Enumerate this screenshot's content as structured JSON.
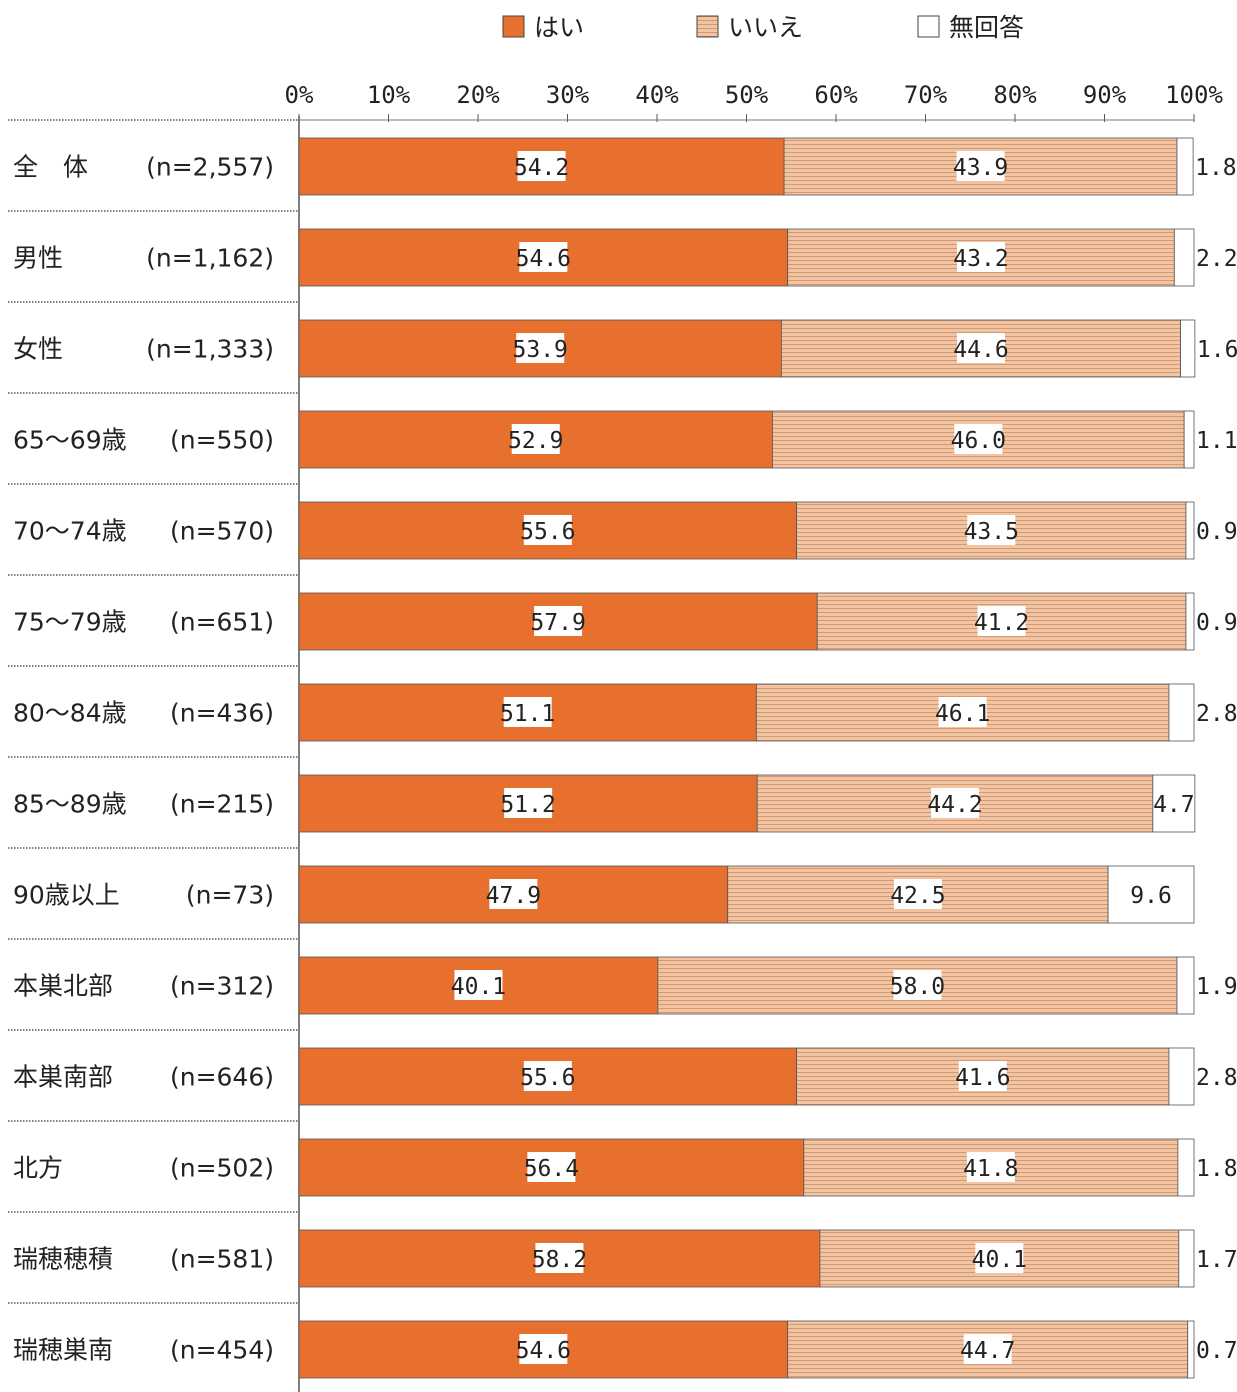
{
  "chart_data": {
    "type": "bar",
    "orientation": "horizontal",
    "stacked": true,
    "xlim": [
      0,
      100
    ],
    "x_ticks": [
      "0%",
      "10%",
      "20%",
      "30%",
      "40%",
      "50%",
      "60%",
      "70%",
      "80%",
      "90%",
      "100%"
    ],
    "legend_position": "top",
    "categories": [
      {
        "label": "全　体",
        "n": "(n=2,557)"
      },
      {
        "label": "男性",
        "n": "(n=1,162)"
      },
      {
        "label": "女性",
        "n": "(n=1,333)"
      },
      {
        "label": "65～69歳",
        "n": "(n=550)"
      },
      {
        "label": "70～74歳",
        "n": "(n=570)"
      },
      {
        "label": "75～79歳",
        "n": "(n=651)"
      },
      {
        "label": "80～84歳",
        "n": "(n=436)"
      },
      {
        "label": "85～89歳",
        "n": "(n=215)"
      },
      {
        "label": "90歳以上",
        "n": "(n=73)"
      },
      {
        "label": "本巣北部",
        "n": "(n=312)"
      },
      {
        "label": "本巣南部",
        "n": "(n=646)"
      },
      {
        "label": "北方",
        "n": "(n=502)"
      },
      {
        "label": "瑞穂穂積",
        "n": "(n=581)"
      },
      {
        "label": "瑞穂巣南",
        "n": "(n=454)"
      }
    ],
    "series": [
      {
        "name": "はい",
        "color": "#E8702F",
        "values": [
          54.2,
          54.6,
          53.9,
          52.9,
          55.6,
          57.9,
          51.1,
          51.2,
          47.9,
          40.1,
          55.6,
          56.4,
          58.2,
          54.6
        ]
      },
      {
        "name": "いいえ",
        "color": "#F2C4A2",
        "values": [
          43.9,
          43.2,
          44.6,
          46.0,
          43.5,
          41.2,
          46.1,
          44.2,
          42.5,
          58.0,
          41.6,
          41.8,
          40.1,
          44.7
        ]
      },
      {
        "name": "無回答",
        "color": "#FFFFFF",
        "values": [
          1.8,
          2.2,
          1.6,
          1.1,
          0.9,
          0.9,
          2.8,
          4.7,
          9.6,
          1.9,
          2.8,
          1.8,
          1.7,
          0.7
        ]
      }
    ]
  }
}
